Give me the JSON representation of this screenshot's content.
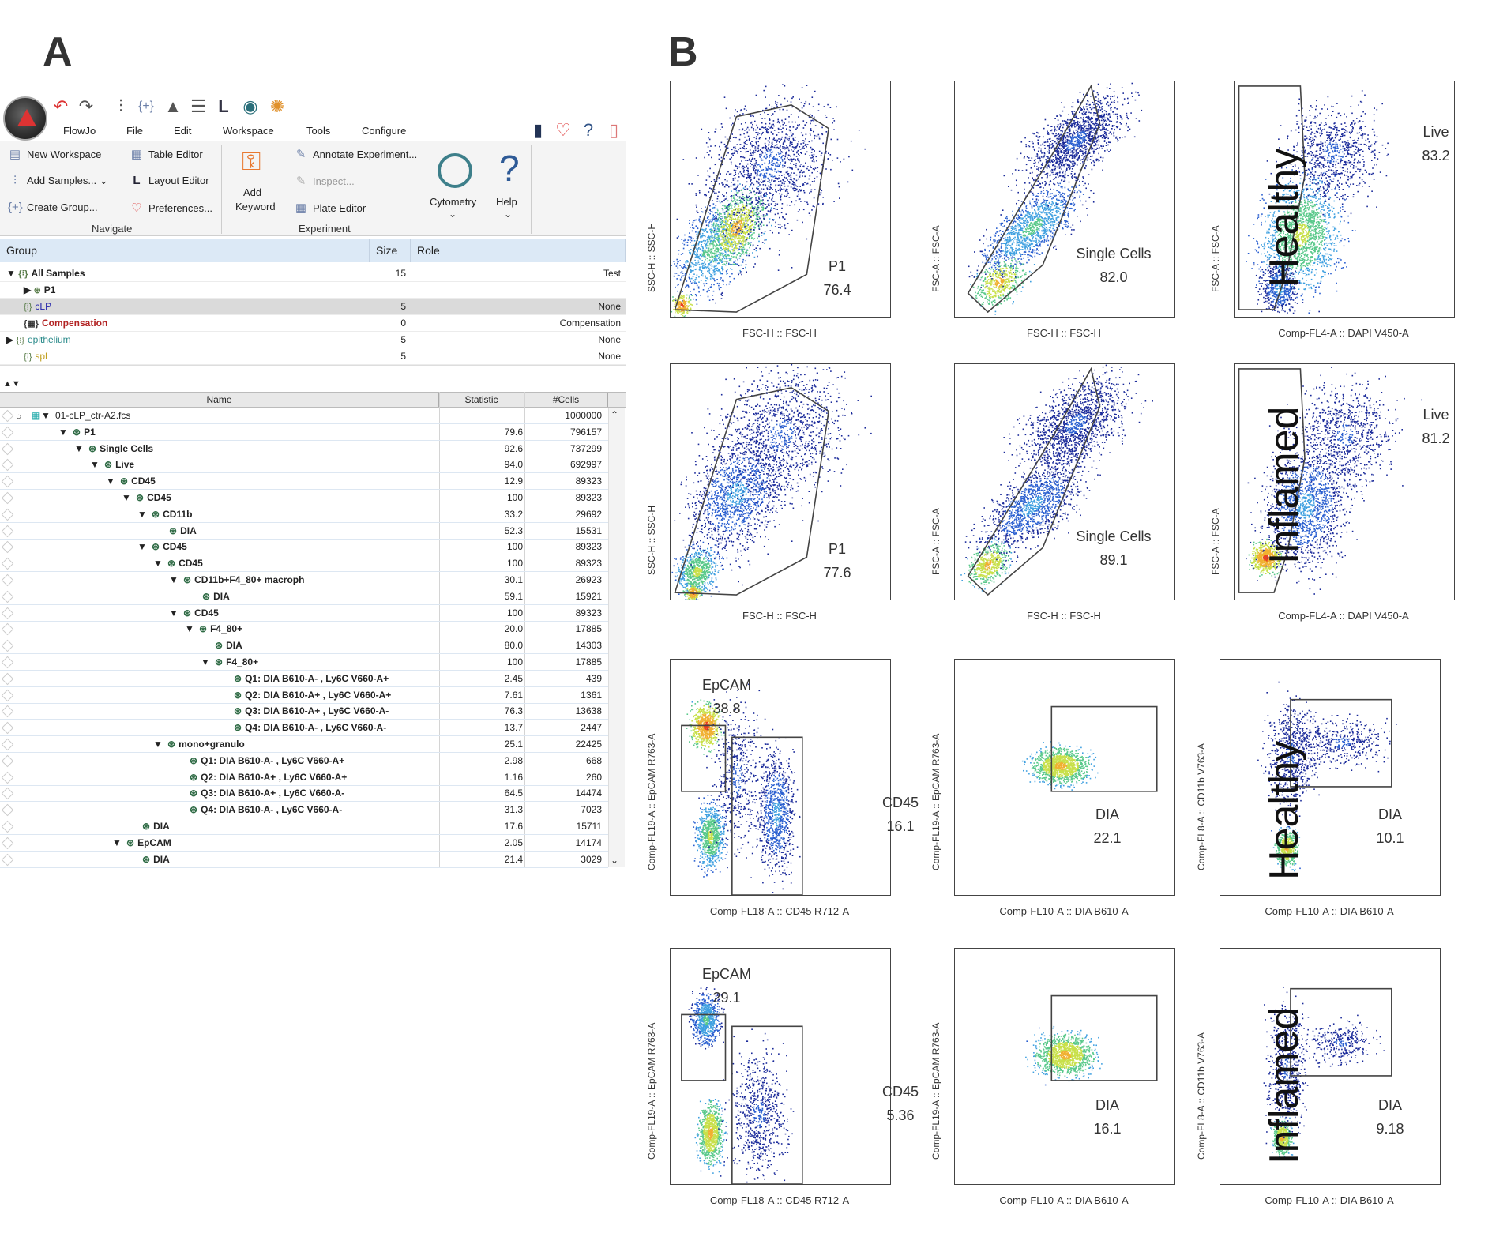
{
  "panels": {
    "a": "A",
    "b": "B"
  },
  "ribbon": {
    "tabs": [
      "FlowJo",
      "File",
      "Edit",
      "Workspace",
      "Tools",
      "Configure"
    ],
    "navigate": {
      "new_workspace": "New Workspace",
      "add_samples": "Add Samples...",
      "create_group": "Create Group...",
      "table_editor": "Table Editor",
      "layout_editor": "Layout Editor",
      "preferences": "Preferences...",
      "group_label": "Navigate"
    },
    "experiment": {
      "add_keyword_1": "Add",
      "add_keyword_2": "Keyword",
      "annotate": "Annotate Experiment...",
      "inspect": "Inspect...",
      "plate_editor": "Plate Editor",
      "group_label": "Experiment"
    },
    "cytometry": "Cytometry",
    "help": "Help"
  },
  "group_table": {
    "headers": {
      "group": "Group",
      "size": "Size",
      "role": "Role"
    },
    "rows": [
      {
        "name": "All Samples",
        "size": "15",
        "role": "Test"
      },
      {
        "name": "P1",
        "size": "",
        "role": ""
      },
      {
        "name": "cLP",
        "size": "5",
        "role": "None"
      },
      {
        "name": "Compensation",
        "size": "0",
        "role": "Compensation"
      },
      {
        "name": "epithelium",
        "size": "5",
        "role": "None"
      },
      {
        "name": "spl",
        "size": "5",
        "role": "None"
      }
    ]
  },
  "tree": {
    "headers": {
      "name": "Name",
      "statistic": "Statistic",
      "cells": "#Cells"
    },
    "rows": [
      {
        "name": "01-cLP_ctr-A2.fcs",
        "stat": "",
        "cells": "1000000"
      },
      {
        "name": "P1",
        "stat": "79.6",
        "cells": "796157"
      },
      {
        "name": "Single Cells",
        "stat": "92.6",
        "cells": "737299"
      },
      {
        "name": "Live",
        "stat": "94.0",
        "cells": "692997"
      },
      {
        "name": "CD45",
        "stat": "12.9",
        "cells": "89323"
      },
      {
        "name": "CD45",
        "stat": "100",
        "cells": "89323"
      },
      {
        "name": "CD11b",
        "stat": "33.2",
        "cells": "29692"
      },
      {
        "name": "DIA",
        "stat": "52.3",
        "cells": "15531"
      },
      {
        "name": "CD45",
        "stat": "100",
        "cells": "89323"
      },
      {
        "name": "CD45",
        "stat": "100",
        "cells": "89323"
      },
      {
        "name": "CD11b+F4_80+ macroph",
        "stat": "30.1",
        "cells": "26923"
      },
      {
        "name": "DIA",
        "stat": "59.1",
        "cells": "15921"
      },
      {
        "name": "CD45",
        "stat": "100",
        "cells": "89323"
      },
      {
        "name": "F4_80+",
        "stat": "20.0",
        "cells": "17885"
      },
      {
        "name": "DIA",
        "stat": "80.0",
        "cells": "14303"
      },
      {
        "name": "F4_80+",
        "stat": "100",
        "cells": "17885"
      },
      {
        "name": "Q1: DIA B610-A- , Ly6C V660-A+",
        "stat": "2.45",
        "cells": "439"
      },
      {
        "name": "Q2: DIA B610-A+ , Ly6C V660-A+",
        "stat": "7.61",
        "cells": "1361"
      },
      {
        "name": "Q3: DIA B610-A+ , Ly6C V660-A-",
        "stat": "76.3",
        "cells": "13638"
      },
      {
        "name": "Q4: DIA B610-A- , Ly6C V660-A-",
        "stat": "13.7",
        "cells": "2447"
      },
      {
        "name": "mono+granulo",
        "stat": "25.1",
        "cells": "22425"
      },
      {
        "name": "Q1: DIA B610-A- , Ly6C V660-A+",
        "stat": "2.98",
        "cells": "668"
      },
      {
        "name": "Q2: DIA B610-A+ , Ly6C V660-A+",
        "stat": "1.16",
        "cells": "260"
      },
      {
        "name": "Q3: DIA B610-A+ , Ly6C V660-A-",
        "stat": "64.5",
        "cells": "14474"
      },
      {
        "name": "Q4: DIA B610-A- , Ly6C V660-A-",
        "stat": "31.3",
        "cells": "7023"
      },
      {
        "name": "DIA",
        "stat": "17.6",
        "cells": "15711"
      },
      {
        "name": "EpCAM",
        "stat": "2.05",
        "cells": "14174"
      },
      {
        "name": "DIA",
        "stat": "21.4",
        "cells": "3029"
      }
    ]
  },
  "conditions": {
    "healthy": "Healthy",
    "inflamed": "Inflamed"
  },
  "plots": {
    "h1": {
      "x": "FSC-H :: FSC-H",
      "y": "SSC-H :: SSC-H",
      "gate": "P1",
      "value": "76.4"
    },
    "h2": {
      "x": "FSC-H :: FSC-H",
      "y": "FSC-A :: FSC-A",
      "gate": "Single Cells",
      "value": "82.0"
    },
    "h3": {
      "x": "Comp-FL4-A :: DAPI V450-A",
      "y": "FSC-A :: FSC-A",
      "gate": "Live",
      "value": "83.2"
    },
    "i1": {
      "x": "FSC-H :: FSC-H",
      "y": "SSC-H :: SSC-H",
      "gate": "P1",
      "value": "77.6"
    },
    "i2": {
      "x": "FSC-H :: FSC-H",
      "y": "FSC-A :: FSC-A",
      "gate": "Single Cells",
      "value": "89.1"
    },
    "i3": {
      "x": "Comp-FL4-A :: DAPI V450-A",
      "y": "FSC-A :: FSC-A",
      "gate": "Live",
      "value": "81.2"
    },
    "h4": {
      "x": "Comp-FL18-A :: CD45 R712-A",
      "y": "Comp-FL19-A :: EpCAM R763-A",
      "gate": "EpCAM",
      "value": "38.8",
      "gate2": "CD45",
      "value2": "16.1"
    },
    "h5": {
      "x": "Comp-FL10-A :: DIA B610-A",
      "y": "Comp-FL19-A :: EpCAM R763-A",
      "gate": "DIA",
      "value": "22.1"
    },
    "h6": {
      "x": "Comp-FL10-A :: DIA B610-A",
      "y": "Comp-FL8-A :: CD11b V763-A",
      "gate": "DIA",
      "value": "10.1"
    },
    "i4": {
      "x": "Comp-FL18-A :: CD45 R712-A",
      "y": "Comp-FL19-A :: EpCAM R763-A",
      "gate": "EpCAM",
      "value": "29.1",
      "gate2": "CD45",
      "value2": "5.36"
    },
    "i5": {
      "x": "Comp-FL10-A :: DIA B610-A",
      "y": "Comp-FL19-A :: EpCAM R763-A",
      "gate": "DIA",
      "value": "16.1"
    },
    "i6": {
      "x": "Comp-FL10-A :: DIA B610-A",
      "y": "Comp-FL8-A :: CD11b V763-A",
      "gate": "DIA",
      "value": "9.18"
    }
  }
}
